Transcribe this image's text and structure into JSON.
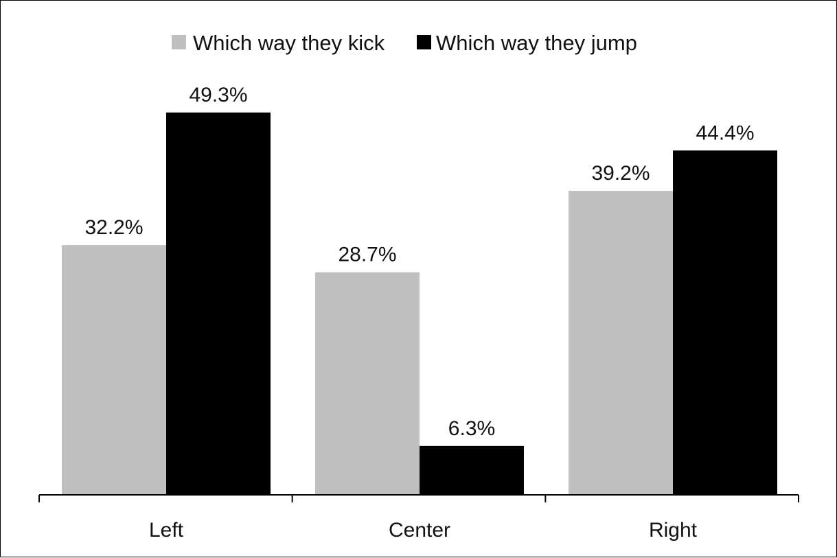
{
  "chart_data": {
    "type": "bar",
    "categories": [
      "Left",
      "Center",
      "Right"
    ],
    "series": [
      {
        "name": "Which way they kick",
        "values": [
          32.2,
          28.7,
          39.2
        ],
        "color": "#c0c0c0"
      },
      {
        "name": "Which way they jump",
        "values": [
          49.3,
          6.3,
          44.4
        ],
        "color": "#000000"
      }
    ],
    "data_labels": [
      [
        "32.2%",
        "28.7%",
        "39.2%"
      ],
      [
        "49.3%",
        "6.3%",
        "44.4%"
      ]
    ],
    "ylim": [
      0,
      60
    ],
    "grid": false,
    "legend_position": "top-center",
    "title": "",
    "xlabel": "",
    "ylabel": ""
  }
}
